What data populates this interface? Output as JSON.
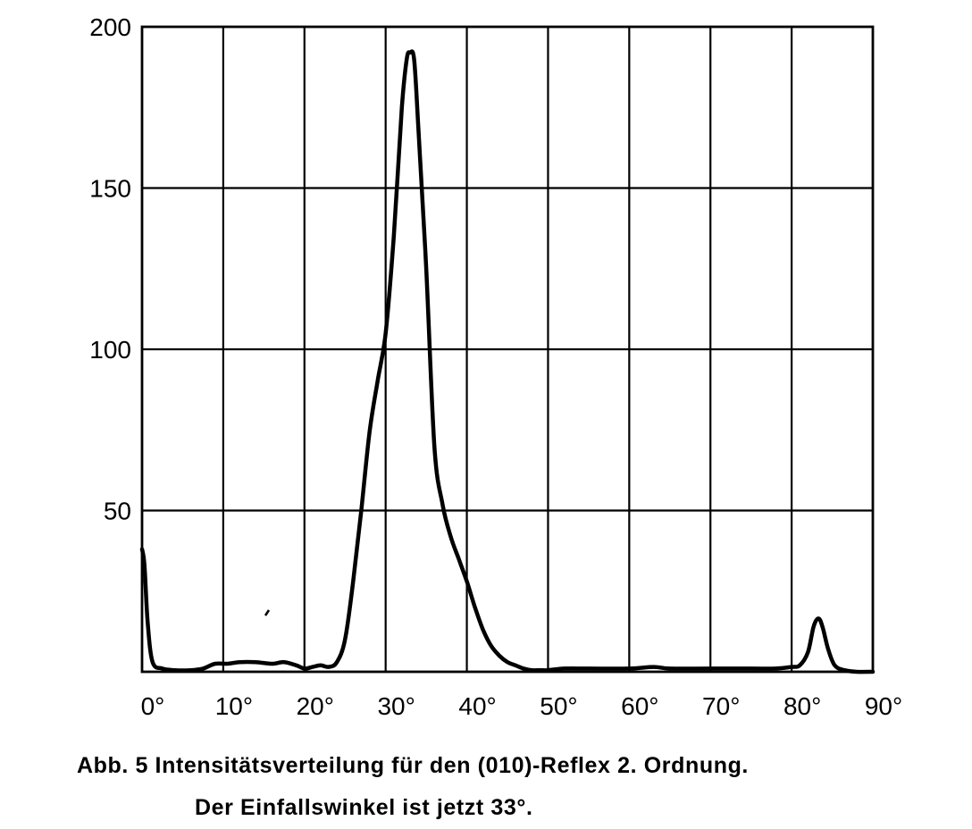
{
  "chart_data": {
    "type": "line",
    "title": "",
    "xlabel": "",
    "ylabel": "",
    "xlim": [
      0,
      90
    ],
    "ylim": [
      0,
      200
    ],
    "x_ticks": [
      0,
      10,
      20,
      30,
      40,
      50,
      60,
      70,
      80,
      90
    ],
    "x_tick_labels": [
      "0°",
      "10°",
      "20°",
      "30°",
      "40°",
      "50°",
      "60°",
      "70°",
      "80°",
      "90°"
    ],
    "y_ticks": [
      50,
      100,
      150,
      200
    ],
    "y_tick_labels": [
      "50",
      "100",
      "150",
      "200"
    ],
    "grid": true,
    "legend": "none",
    "line_color": "#000000",
    "series": [
      {
        "x": [
          0,
          0.3,
          0.7,
          1.3,
          2.5,
          4,
          6,
          7.5,
          9,
          10.5,
          12,
          14,
          16,
          17.5,
          19,
          20,
          21,
          22,
          23,
          24,
          25,
          26,
          27,
          28,
          29,
          30,
          31,
          32,
          32.6,
          33,
          33.5,
          34,
          35,
          36,
          37,
          38,
          39,
          40,
          41,
          42,
          43,
          44,
          45,
          46,
          47,
          48,
          49,
          50,
          52,
          55,
          60,
          63,
          65,
          70,
          75,
          78,
          80,
          81,
          82,
          82.7,
          83.3,
          83.8,
          84.5,
          85.3,
          86.5,
          88,
          90
        ],
        "y": [
          38,
          33,
          15,
          3,
          1,
          0.5,
          0.5,
          1,
          2.5,
          2.5,
          3,
          3,
          2.5,
          3,
          2,
          1,
          1.5,
          2,
          1.5,
          3,
          10,
          28,
          50,
          74,
          90,
          105,
          135,
          175,
          190,
          192,
          190,
          170,
          125,
          70,
          52,
          42,
          35,
          28,
          20,
          13,
          8,
          5,
          3,
          2,
          1,
          0.5,
          0.5,
          0.5,
          1,
          1,
          1,
          1.5,
          1,
          1,
          1,
          1,
          1.5,
          2,
          6,
          14,
          16.5,
          14,
          7,
          2,
          0.5,
          0,
          0
        ]
      }
    ]
  },
  "caption": {
    "line1": "Abb. 5  Intensitätsverteilung für den (010)-Reflex 2. Ordnung.",
    "line2": "Der Einfallswinkel ist jetzt 33°."
  }
}
